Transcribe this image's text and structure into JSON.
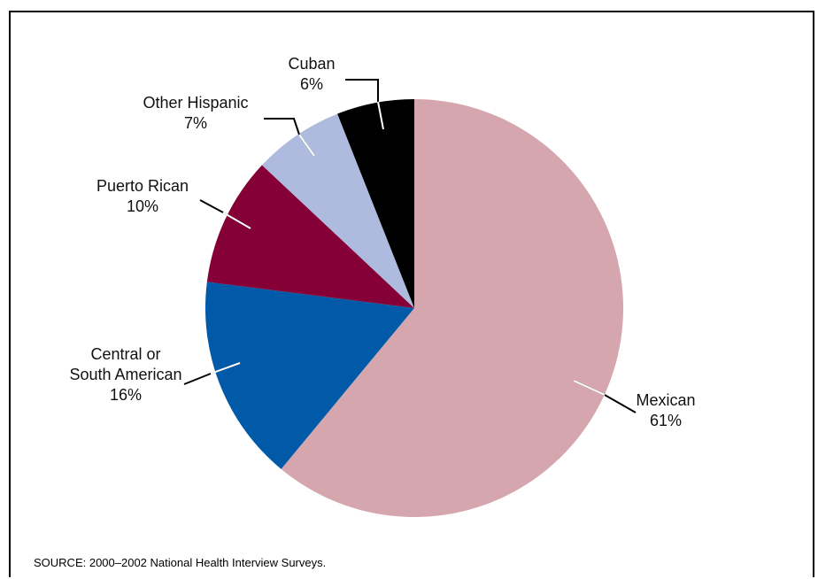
{
  "chart_data": {
    "type": "pie",
    "slices": [
      {
        "name": "Mexican",
        "value": 61,
        "label_lines": [
          "Mexican",
          "61%"
        ],
        "color": "#d5a6ae"
      },
      {
        "name": "Central or South American",
        "value": 16,
        "label_lines": [
          "Central or",
          "South American",
          "16%"
        ],
        "color": "#005aa8"
      },
      {
        "name": "Puerto Rican",
        "value": 10,
        "label_lines": [
          "Puerto Rican",
          "10%"
        ],
        "color": "#840036"
      },
      {
        "name": "Other Hispanic",
        "value": 7,
        "label_lines": [
          "Other Hispanic",
          "7%"
        ],
        "color": "#aebbdf"
      },
      {
        "name": "Cuban",
        "value": 6,
        "label_lines": [
          "Cuban",
          "6%"
        ],
        "color": "#000000"
      }
    ]
  },
  "source": "SOURCE: 2000–2002 National Health Interview Surveys."
}
